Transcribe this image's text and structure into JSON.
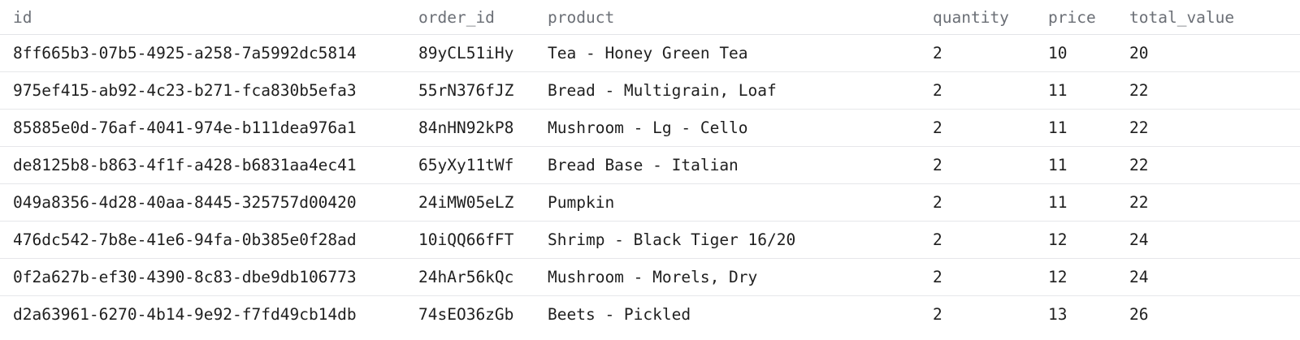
{
  "table": {
    "columns": [
      "id",
      "order_id",
      "product",
      "quantity",
      "price",
      "total_value"
    ],
    "rows": [
      [
        "8ff665b3-07b5-4925-a258-7a5992dc5814",
        "89yCL51iHy",
        "Tea - Honey Green Tea",
        "2",
        "10",
        "20"
      ],
      [
        "975ef415-ab92-4c23-b271-fca830b5efa3",
        "55rN376fJZ",
        "Bread - Multigrain, Loaf",
        "2",
        "11",
        "22"
      ],
      [
        "85885e0d-76af-4041-974e-b111dea976a1",
        "84nHN92kP8",
        "Mushroom - Lg - Cello",
        "2",
        "11",
        "22"
      ],
      [
        "de8125b8-b863-4f1f-a428-b6831aa4ec41",
        "65yXy11tWf",
        "Bread Base - Italian",
        "2",
        "11",
        "22"
      ],
      [
        "049a8356-4d28-40aa-8445-325757d00420",
        "24iMW05eLZ",
        "Pumpkin",
        "2",
        "11",
        "22"
      ],
      [
        "476dc542-7b8e-41e6-94fa-0b385e0f28ad",
        "10iQQ66fFT",
        "Shrimp - Black Tiger 16/20",
        "2",
        "12",
        "24"
      ],
      [
        "0f2a627b-ef30-4390-8c83-dbe9db106773",
        "24hAr56kQc",
        "Mushroom - Morels, Dry",
        "2",
        "12",
        "24"
      ],
      [
        "d2a63961-6270-4b14-9e92-f7fd49cb14db",
        "74sEO36zGb",
        "Beets - Pickled",
        "2",
        "13",
        "26"
      ]
    ]
  }
}
